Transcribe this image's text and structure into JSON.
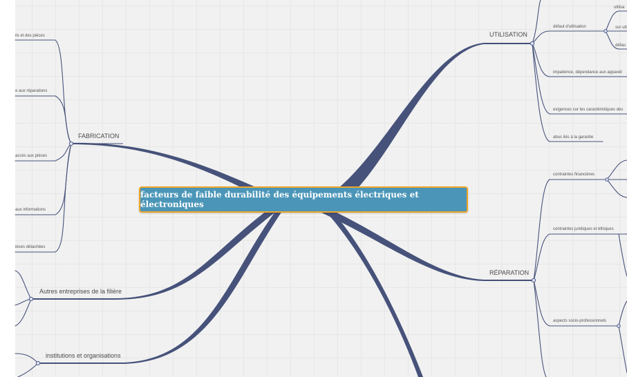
{
  "central": "facteurs de faible durabilité des équipements électriques et électroniques",
  "branches": {
    "fabrication": {
      "label": "FABRICATION",
      "children": [
        "ils et des pièces",
        "e aux réparations",
        "accès aux pièces",
        "aux informations",
        "ièces détachées"
      ]
    },
    "autres": {
      "label": "Autres entreprises de la filière"
    },
    "institutions": {
      "label": "institutions et organisations"
    },
    "utilisation": {
      "label": "UTILISATION",
      "children": {
        "defaut": "défaut d'utilisation",
        "defaut_children": [
          "utilisa",
          "sur-uti",
          "défau"
        ],
        "impatience": "impatience, dépendance aux appareil",
        "exigences": "exigences sur les caractéristiques des",
        "abus": "abus liés à la garantie"
      }
    },
    "reparation": {
      "label": "RÉPARATION",
      "children": {
        "financieres": "contraintes financières",
        "juridiques": "contraintes juridiques et éthiques",
        "socio": "aspects socio-professionnels"
      }
    }
  },
  "colors": {
    "central_fill": "#4b96b8",
    "central_border": "#efa52a",
    "connector": "#46527a",
    "background": "#f1f1f1"
  }
}
